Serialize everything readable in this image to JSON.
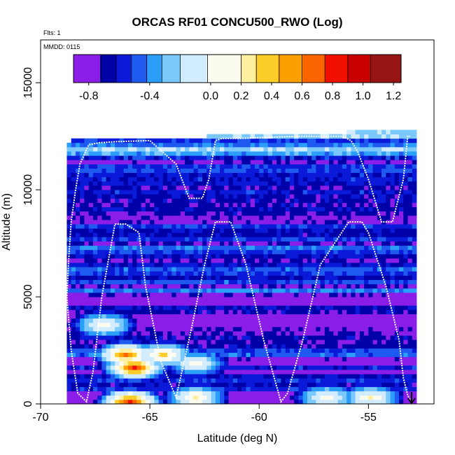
{
  "chart_data": {
    "type": "heatmap",
    "title": "ORCAS RF01 CONCU500_RWO (Log)",
    "xlabel": "Latitude (deg N)",
    "ylabel": "Altitude (m)",
    "xlim": [
      -70,
      -52
    ],
    "ylim": [
      0,
      17000
    ],
    "x_ticks": [
      -70,
      -65,
      -60,
      -55
    ],
    "x_tick_labels": [
      "-70",
      "-65",
      "-60",
      "-55"
    ],
    "y_ticks": [
      0,
      5000,
      10000,
      15000
    ],
    "y_tick_labels": [
      "0",
      "5000",
      "10000",
      "15000"
    ],
    "notes": {
      "flights": "Flts: 1",
      "date": "MMDD: 0115"
    },
    "colorbar": {
      "range": [
        -0.9,
        1.25
      ],
      "ticks": [
        -0.8,
        -0.4,
        0.0,
        0.2,
        0.4,
        0.6,
        0.8,
        1.0,
        1.2
      ],
      "tick_labels": [
        "-0.8",
        "-0.4",
        "0.0",
        "0.2",
        "0.4",
        "0.6",
        "0.8",
        "1.0",
        "1.2"
      ],
      "bins": [
        {
          "from": -0.9,
          "to": -0.72,
          "color": "#8a1ee8"
        },
        {
          "from": -0.72,
          "to": -0.62,
          "color": "#0000a8"
        },
        {
          "from": -0.62,
          "to": -0.52,
          "color": "#0a1ad8"
        },
        {
          "from": -0.52,
          "to": -0.42,
          "color": "#1e5af0"
        },
        {
          "from": -0.42,
          "to": -0.32,
          "color": "#2a9ef8"
        },
        {
          "from": -0.32,
          "to": -0.2,
          "color": "#7ac8fc"
        },
        {
          "from": -0.2,
          "to": -0.02,
          "color": "#d2ecff"
        },
        {
          "from": -0.02,
          "to": 0.2,
          "color": "#fbfbf0"
        },
        {
          "from": 0.2,
          "to": 0.3,
          "color": "#fff0a0"
        },
        {
          "from": 0.3,
          "to": 0.45,
          "color": "#fccc28"
        },
        {
          "from": 0.45,
          "to": 0.6,
          "color": "#fca000"
        },
        {
          "from": 0.6,
          "to": 0.75,
          "color": "#fc6400"
        },
        {
          "from": 0.75,
          "to": 0.9,
          "color": "#f01000"
        },
        {
          "from": 0.9,
          "to": 1.05,
          "color": "#c80000"
        },
        {
          "from": 1.05,
          "to": 1.25,
          "color": "#961414"
        }
      ]
    },
    "data_extent": {
      "lat_min": -68.8,
      "lat_max": -52.8,
      "lat_step": 0.2,
      "alt_step": 200,
      "bottom_top_alt": 12200,
      "top_right_alt": 12700
    },
    "field_bands": [
      {
        "alt_from": 0,
        "alt_to": 600,
        "value": -0.85
      },
      {
        "alt_from": 600,
        "alt_to": 2200,
        "value": -0.7
      },
      {
        "alt_from": 2200,
        "alt_to": 3200,
        "value": -0.55
      },
      {
        "alt_from": 3200,
        "alt_to": 5000,
        "value": -0.72
      },
      {
        "alt_from": 5000,
        "alt_to": 9000,
        "value": -0.6
      },
      {
        "alt_from": 9000,
        "alt_to": 11500,
        "value": -0.62
      },
      {
        "alt_from": 11500,
        "alt_to": 12800,
        "value": -0.38
      }
    ],
    "hotspots": [
      {
        "lat": -66.0,
        "alt": 0,
        "value": 0.9
      },
      {
        "lat": -65.8,
        "alt": 1600,
        "value": 0.85
      },
      {
        "lat": -66.2,
        "alt": 2200,
        "value": 0.65
      },
      {
        "lat": -67.2,
        "alt": 3600,
        "value": 0.2
      },
      {
        "lat": -64.5,
        "alt": 2200,
        "value": 0.4
      },
      {
        "lat": -63.0,
        "alt": 1800,
        "value": 0.15
      },
      {
        "lat": -63.0,
        "alt": 200,
        "value": 0.3
      },
      {
        "lat": -57.0,
        "alt": 200,
        "value": 0.2
      },
      {
        "lat": -55.0,
        "alt": 200,
        "value": 0.25
      }
    ],
    "flight_track": {
      "lat": [
        -53.0,
        -53.2,
        -53.4,
        -53.6,
        -54.2,
        -55.0,
        -55.3,
        -55.9,
        -57.2,
        -58.0,
        -58.7,
        -59.0,
        -59.8,
        -60.6,
        -61.3,
        -62.0,
        -62.5,
        -63.1,
        -63.8,
        -64.5,
        -65.2,
        -65.5,
        -66.1,
        -66.6,
        -67.2,
        -67.6,
        -67.9,
        -68.3,
        -68.6,
        -68.8,
        -68.7,
        -68.6,
        -68.4,
        -68.2,
        -67.8,
        -67.3,
        -66.5,
        -65.0,
        -63.8,
        -63.2,
        -62.6,
        -62.3,
        -62.0,
        -61.7,
        -61.4,
        -60.8,
        -58.2,
        -56.2,
        -55.8,
        -55.5,
        -55.0,
        -54.4,
        -53.9,
        -53.4,
        -53.2,
        -53.1
      ],
      "alt": [
        0,
        400,
        1200,
        3000,
        5500,
        8000,
        8500,
        8500,
        6500,
        3000,
        500,
        100,
        3000,
        6500,
        8500,
        8500,
        6500,
        3500,
        300,
        2000,
        5500,
        8000,
        8400,
        8400,
        5000,
        1500,
        100,
        500,
        2500,
        5000,
        7000,
        8500,
        10000,
        11200,
        12100,
        12200,
        12250,
        12300,
        11200,
        9600,
        9600,
        10500,
        12300,
        12400,
        12400,
        12400,
        12500,
        12500,
        12300,
        11800,
        10500,
        8500,
        8500,
        10500,
        12500,
        12500
      ]
    }
  }
}
